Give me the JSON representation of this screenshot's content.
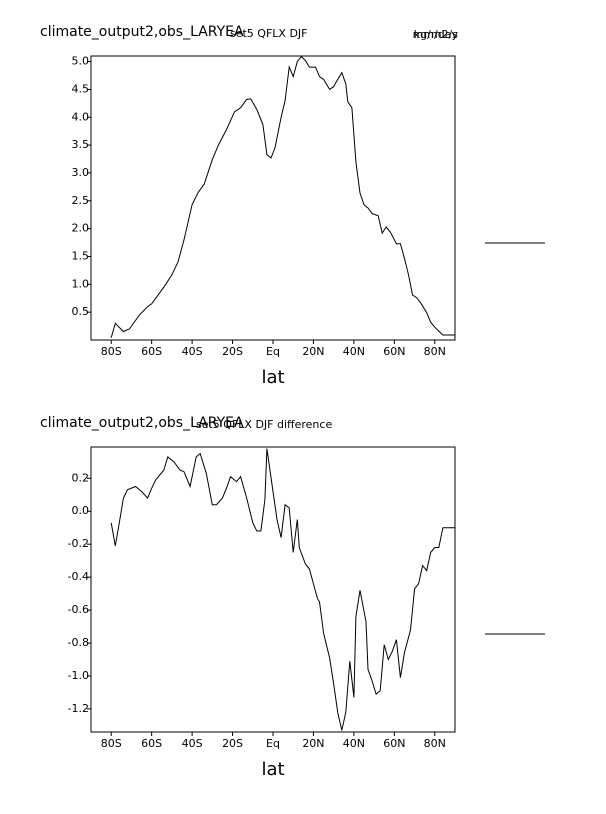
{
  "chart_data": [
    {
      "type": "line",
      "title": "climate_output2,obs_LARYEA",
      "subtitle": "set5 QFLX DJF",
      "annotations": [
        "kg/m2/s",
        "mm/day"
      ],
      "xlabel": "lat",
      "color": "#000000",
      "x": [
        -80,
        -78,
        -74,
        -71,
        -66,
        -62,
        -60,
        -56,
        -53,
        -50,
        -47,
        -44,
        -40,
        -37,
        -34,
        -30,
        -27,
        -23,
        -19,
        -16,
        -13,
        -11,
        -8,
        -5,
        -3,
        -1,
        1,
        4,
        6,
        8,
        10,
        12,
        14,
        16,
        18,
        21,
        23,
        25,
        28,
        30,
        31,
        34,
        36,
        37,
        39,
        41,
        43,
        45,
        47,
        49,
        52,
        54,
        56,
        58,
        61,
        63,
        65,
        67,
        69,
        71,
        73,
        76,
        78,
        80,
        82,
        84,
        90
      ],
      "values": [
        0.04,
        0.3,
        0.15,
        0.2,
        0.45,
        0.6,
        0.65,
        0.85,
        1.0,
        1.17,
        1.4,
        1.8,
        2.43,
        2.65,
        2.8,
        3.24,
        3.5,
        3.78,
        4.1,
        4.17,
        4.32,
        4.33,
        4.14,
        3.87,
        3.33,
        3.27,
        3.45,
        4.0,
        4.3,
        4.9,
        4.73,
        5.0,
        5.09,
        5.02,
        4.9,
        4.9,
        4.73,
        4.68,
        4.5,
        4.55,
        4.62,
        4.8,
        4.6,
        4.28,
        4.17,
        3.2,
        2.64,
        2.43,
        2.37,
        2.27,
        2.23,
        1.92,
        2.03,
        1.94,
        1.73,
        1.73,
        1.47,
        1.17,
        0.81,
        0.76,
        0.67,
        0.49,
        0.32,
        0.23,
        0.16,
        0.09,
        0.09
      ],
      "xlim": [
        -90,
        90
      ],
      "xticks": [
        {
          "value": -80,
          "label": "80S"
        },
        {
          "value": -60,
          "label": "60S"
        },
        {
          "value": -40,
          "label": "40S"
        },
        {
          "value": -20,
          "label": "20S"
        },
        {
          "value": 0,
          "label": "Eq"
        },
        {
          "value": 20,
          "label": "20N"
        },
        {
          "value": 40,
          "label": "40N"
        },
        {
          "value": 60,
          "label": "60N"
        },
        {
          "value": 80,
          "label": "80N"
        }
      ],
      "ylim": [
        0,
        5.1
      ],
      "yticks": [
        0.5,
        {
          "value": 1,
          "label": "1.0"
        },
        1.5,
        {
          "value": 2,
          "label": "2.0"
        },
        2.5,
        {
          "value": 3,
          "label": "3.0"
        },
        3.5,
        {
          "value": 4,
          "label": "4.0"
        },
        4.5,
        {
          "value": 5,
          "label": "5.0"
        }
      ]
    },
    {
      "type": "line",
      "title": "climate_output2,obs_LARYEA",
      "subtitle": "set5 QFLX DJF difference",
      "xlabel": "lat",
      "color": "#000000",
      "x": [
        -80,
        -78,
        -76,
        -74,
        -72,
        -68,
        -65,
        -62,
        -60,
        -58,
        -54,
        -52,
        -49,
        -46,
        -44,
        -41,
        -38,
        -36,
        -33,
        -30,
        -28,
        -25,
        -23,
        -21,
        -18,
        -16,
        -13,
        -10,
        -8,
        -6,
        -4,
        -3,
        0,
        2,
        4,
        6,
        8,
        10,
        12,
        13,
        16,
        18,
        20,
        22,
        23,
        25,
        28,
        30,
        32,
        34,
        36,
        38,
        40,
        41,
        43,
        46,
        47,
        49,
        51,
        53,
        55,
        57,
        59,
        61,
        63,
        65,
        68,
        70,
        72,
        74,
        76,
        78,
        80,
        82,
        84,
        86,
        90
      ],
      "values": [
        -0.07,
        -0.21,
        -0.07,
        0.08,
        0.13,
        0.15,
        0.12,
        0.08,
        0.14,
        0.19,
        0.25,
        0.33,
        0.3,
        0.25,
        0.24,
        0.15,
        0.33,
        0.35,
        0.23,
        0.04,
        0.04,
        0.08,
        0.14,
        0.21,
        0.18,
        0.21,
        0.08,
        -0.07,
        -0.12,
        -0.12,
        0.07,
        0.38,
        0.12,
        -0.05,
        -0.16,
        0.04,
        0.02,
        -0.25,
        -0.05,
        -0.22,
        -0.32,
        -0.35,
        -0.44,
        -0.53,
        -0.55,
        -0.74,
        -0.89,
        -1.05,
        -1.22,
        -1.33,
        -1.22,
        -0.91,
        -1.13,
        -0.64,
        -0.48,
        -0.67,
        -0.96,
        -1.03,
        -1.11,
        -1.09,
        -0.81,
        -0.9,
        -0.85,
        -0.78,
        -1.01,
        -0.86,
        -0.72,
        -0.47,
        -0.44,
        -0.33,
        -0.36,
        -0.25,
        -0.22,
        -0.22,
        -0.1,
        -0.1,
        -0.1
      ],
      "xlim": [
        -90,
        90
      ],
      "xticks": [
        {
          "value": -80,
          "label": "80S"
        },
        {
          "value": -60,
          "label": "60S"
        },
        {
          "value": -40,
          "label": "40S"
        },
        {
          "value": -20,
          "label": "20S"
        },
        {
          "value": 0,
          "label": "Eq"
        },
        {
          "value": 20,
          "label": "20N"
        },
        {
          "value": 40,
          "label": "40N"
        },
        {
          "value": 60,
          "label": "60N"
        },
        {
          "value": 80,
          "label": "80N"
        }
      ],
      "ylim": [
        -1.34,
        0.39
      ],
      "yticks": [
        -1.2,
        {
          "value": -1,
          "label": "-1.0"
        },
        -0.8,
        -0.6,
        -0.4,
        -0.2,
        {
          "value": 0,
          "label": "0.0"
        },
        0.2
      ]
    }
  ]
}
